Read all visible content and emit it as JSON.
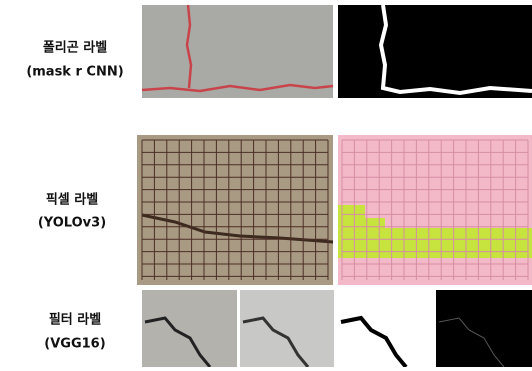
{
  "rows": [
    {
      "label": "폴리곤 라벨",
      "method": "(mask r CNN)"
    },
    {
      "label": "픽셀 라벨",
      "method": "(YOLOv3)"
    },
    {
      "label": "필터 라벨",
      "method": "(VGG16)"
    }
  ]
}
